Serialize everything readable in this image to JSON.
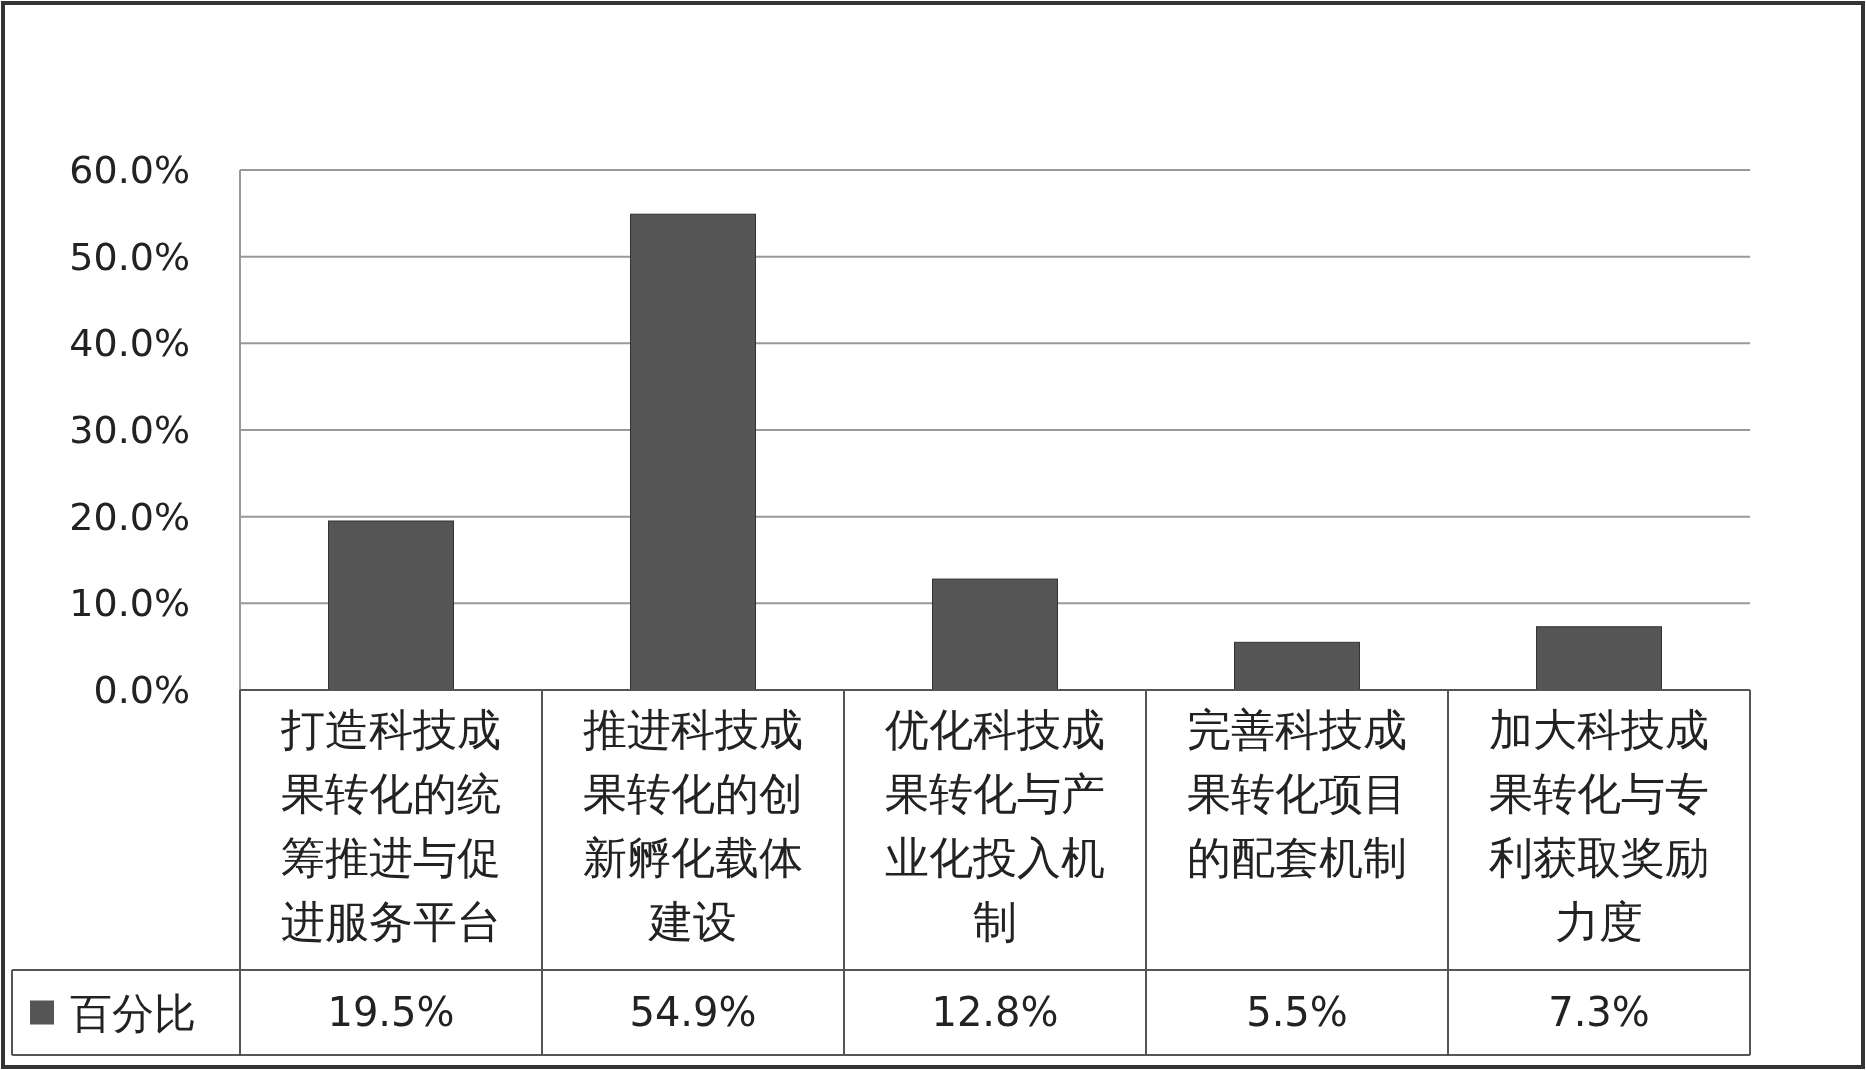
{
  "chart_data": {
    "type": "bar",
    "categories": [
      "打造科技成果转化的统筹推进与促进服务平台",
      "推进科技成果转化的创新孵化载体建设",
      "优化科技成果转化与产业化投入机制",
      "完善科技成果转化项目的配套机制",
      "加大科技成果转化与专利获取奖励力度"
    ],
    "series": [
      {
        "name": "百分比",
        "color": "#555555",
        "values": [
          19.5,
          54.9,
          12.8,
          5.5,
          7.3
        ]
      }
    ],
    "ylim": [
      0,
      60
    ],
    "yticks": [
      {
        "value": 0,
        "label": "0.0%"
      },
      {
        "value": 10,
        "label": "10.0%"
      },
      {
        "value": 20,
        "label": "20.0%"
      },
      {
        "value": 30,
        "label": "30.0%"
      },
      {
        "value": 40,
        "label": "40.0%"
      },
      {
        "value": 50,
        "label": "50.0%"
      },
      {
        "value": 60,
        "label": "60.0%"
      }
    ],
    "grid": "y",
    "legend": "bottom",
    "value_labels": [
      "19.5%",
      "54.9%",
      "12.8%",
      "5.5%",
      "7.3%"
    ]
  }
}
